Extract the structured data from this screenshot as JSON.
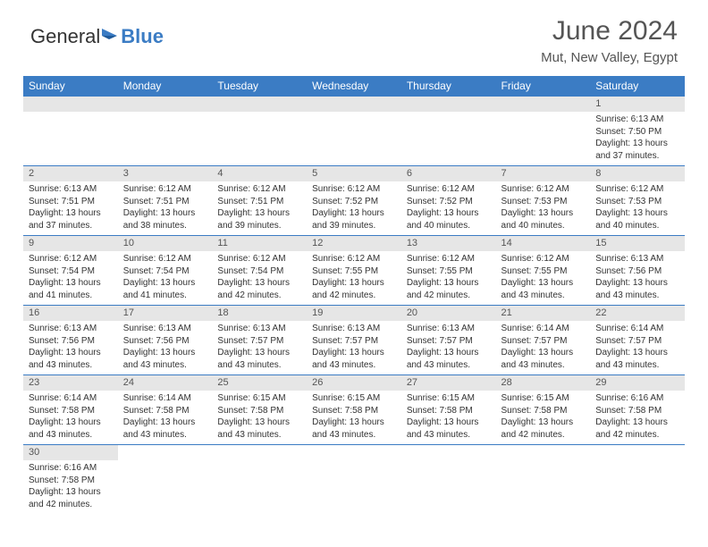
{
  "logo": {
    "text1": "General",
    "text2": "Blue"
  },
  "header": {
    "month_title": "June 2024",
    "location": "Mut, New Valley, Egypt"
  },
  "day_headers": [
    "Sunday",
    "Monday",
    "Tuesday",
    "Wednesday",
    "Thursday",
    "Friday",
    "Saturday"
  ],
  "colors": {
    "header_bg": "#3b7cc4",
    "header_text": "#ffffff",
    "daynum_bg": "#e6e6e6",
    "border": "#3b7cc4"
  },
  "weeks": [
    [
      null,
      null,
      null,
      null,
      null,
      null,
      {
        "n": "1",
        "sr": "6:13 AM",
        "ss": "7:50 PM",
        "dl": "13 hours and 37 minutes."
      }
    ],
    [
      {
        "n": "2",
        "sr": "6:13 AM",
        "ss": "7:51 PM",
        "dl": "13 hours and 37 minutes."
      },
      {
        "n": "3",
        "sr": "6:12 AM",
        "ss": "7:51 PM",
        "dl": "13 hours and 38 minutes."
      },
      {
        "n": "4",
        "sr": "6:12 AM",
        "ss": "7:51 PM",
        "dl": "13 hours and 39 minutes."
      },
      {
        "n": "5",
        "sr": "6:12 AM",
        "ss": "7:52 PM",
        "dl": "13 hours and 39 minutes."
      },
      {
        "n": "6",
        "sr": "6:12 AM",
        "ss": "7:52 PM",
        "dl": "13 hours and 40 minutes."
      },
      {
        "n": "7",
        "sr": "6:12 AM",
        "ss": "7:53 PM",
        "dl": "13 hours and 40 minutes."
      },
      {
        "n": "8",
        "sr": "6:12 AM",
        "ss": "7:53 PM",
        "dl": "13 hours and 40 minutes."
      }
    ],
    [
      {
        "n": "9",
        "sr": "6:12 AM",
        "ss": "7:54 PM",
        "dl": "13 hours and 41 minutes."
      },
      {
        "n": "10",
        "sr": "6:12 AM",
        "ss": "7:54 PM",
        "dl": "13 hours and 41 minutes."
      },
      {
        "n": "11",
        "sr": "6:12 AM",
        "ss": "7:54 PM",
        "dl": "13 hours and 42 minutes."
      },
      {
        "n": "12",
        "sr": "6:12 AM",
        "ss": "7:55 PM",
        "dl": "13 hours and 42 minutes."
      },
      {
        "n": "13",
        "sr": "6:12 AM",
        "ss": "7:55 PM",
        "dl": "13 hours and 42 minutes."
      },
      {
        "n": "14",
        "sr": "6:12 AM",
        "ss": "7:55 PM",
        "dl": "13 hours and 43 minutes."
      },
      {
        "n": "15",
        "sr": "6:13 AM",
        "ss": "7:56 PM",
        "dl": "13 hours and 43 minutes."
      }
    ],
    [
      {
        "n": "16",
        "sr": "6:13 AM",
        "ss": "7:56 PM",
        "dl": "13 hours and 43 minutes."
      },
      {
        "n": "17",
        "sr": "6:13 AM",
        "ss": "7:56 PM",
        "dl": "13 hours and 43 minutes."
      },
      {
        "n": "18",
        "sr": "6:13 AM",
        "ss": "7:57 PM",
        "dl": "13 hours and 43 minutes."
      },
      {
        "n": "19",
        "sr": "6:13 AM",
        "ss": "7:57 PM",
        "dl": "13 hours and 43 minutes."
      },
      {
        "n": "20",
        "sr": "6:13 AM",
        "ss": "7:57 PM",
        "dl": "13 hours and 43 minutes."
      },
      {
        "n": "21",
        "sr": "6:14 AM",
        "ss": "7:57 PM",
        "dl": "13 hours and 43 minutes."
      },
      {
        "n": "22",
        "sr": "6:14 AM",
        "ss": "7:57 PM",
        "dl": "13 hours and 43 minutes."
      }
    ],
    [
      {
        "n": "23",
        "sr": "6:14 AM",
        "ss": "7:58 PM",
        "dl": "13 hours and 43 minutes."
      },
      {
        "n": "24",
        "sr": "6:14 AM",
        "ss": "7:58 PM",
        "dl": "13 hours and 43 minutes."
      },
      {
        "n": "25",
        "sr": "6:15 AM",
        "ss": "7:58 PM",
        "dl": "13 hours and 43 minutes."
      },
      {
        "n": "26",
        "sr": "6:15 AM",
        "ss": "7:58 PM",
        "dl": "13 hours and 43 minutes."
      },
      {
        "n": "27",
        "sr": "6:15 AM",
        "ss": "7:58 PM",
        "dl": "13 hours and 43 minutes."
      },
      {
        "n": "28",
        "sr": "6:15 AM",
        "ss": "7:58 PM",
        "dl": "13 hours and 42 minutes."
      },
      {
        "n": "29",
        "sr": "6:16 AM",
        "ss": "7:58 PM",
        "dl": "13 hours and 42 minutes."
      }
    ],
    [
      {
        "n": "30",
        "sr": "6:16 AM",
        "ss": "7:58 PM",
        "dl": "13 hours and 42 minutes."
      },
      null,
      null,
      null,
      null,
      null,
      null
    ]
  ],
  "labels": {
    "sunrise": "Sunrise: ",
    "sunset": "Sunset: ",
    "daylight": "Daylight: "
  }
}
